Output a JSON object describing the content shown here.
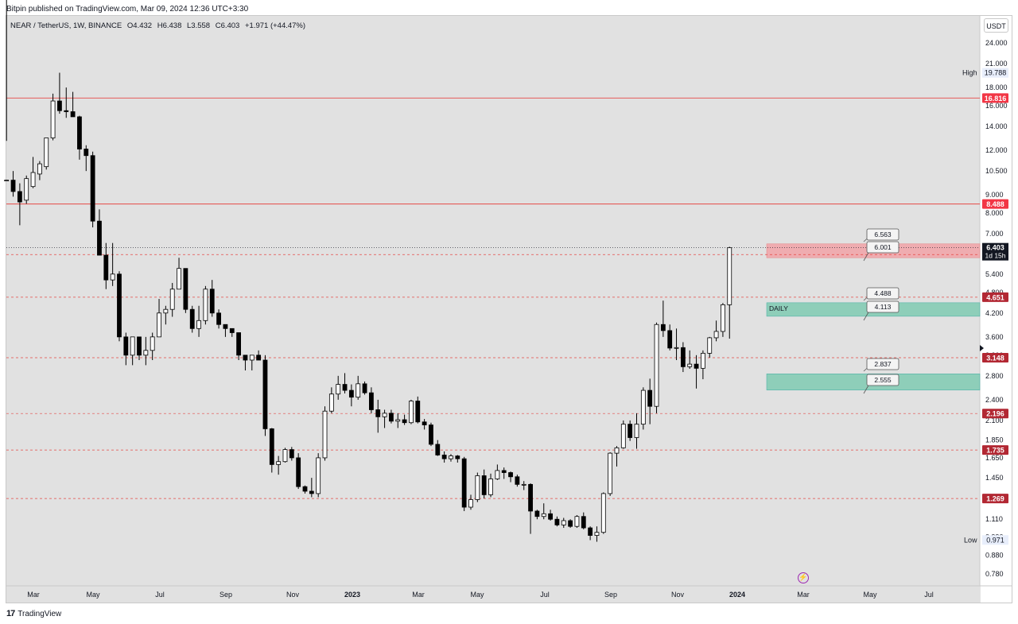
{
  "header": {
    "published_by": "Bitpin published on TradingView.com, Mar 09, 2024 12:36 UTC+3:30"
  },
  "legend": {
    "symbol": "NEAR / TetherUS, 1W, BINANCE",
    "open": "O4.432",
    "high": "H6.438",
    "low": "L3.558",
    "close": "C6.403",
    "change": "+1.971 (+44.47%)"
  },
  "price_axis": {
    "currency": "USDT",
    "tick_labels": [
      "24.000",
      "21.000",
      "18.000",
      "16.000",
      "14.000",
      "12.000",
      "10.500",
      "9.000",
      "8.000",
      "7.000",
      "6.000",
      "5.400",
      "4.800",
      "4.200",
      "3.600",
      "3.200",
      "2.800",
      "2.400",
      "2.100",
      "1.850",
      "1.650",
      "1.450",
      "1.250",
      "1.110",
      "0.990",
      "0.880",
      "0.780"
    ]
  },
  "time_axis": {
    "labels": [
      "Mar",
      "May",
      "Jul",
      "Sep",
      "Nov",
      "2023",
      "Mar",
      "May",
      "Jul",
      "Sep",
      "Nov",
      "2024",
      "Mar",
      "May",
      "Jul"
    ]
  },
  "footer": {
    "brand": "TradingView",
    "brand_mark": "17"
  },
  "colors": {
    "background": "#e1e1e1",
    "candle_up_body": "#ffffff",
    "candle_down_body": "#000000",
    "level_red": "#e53935",
    "zone_red": "#f2a3a8",
    "zone_green": "#80cbb3",
    "last_price_bg": "#131722"
  },
  "chart_data": {
    "type": "candlestick",
    "title": "NEAR / TetherUS, 1W, BINANCE",
    "yscale": "log",
    "ylim": [
      0.74,
      27
    ],
    "time_labels": [
      "Mar",
      "May",
      "Jul",
      "Sep",
      "Nov",
      "2023",
      "Mar",
      "May",
      "Jul",
      "Sep",
      "Nov",
      "2024",
      "Mar",
      "May",
      "Jul"
    ],
    "candles": [
      [
        null,
        null,
        12.75,
        9.9
      ],
      [
        9.9,
        10.5,
        8.9,
        9.2
      ],
      [
        9.2,
        9.7,
        7.4,
        8.6
      ],
      [
        8.7,
        10.2,
        8.5,
        10.0
      ],
      [
        9.5,
        11.5,
        9.4,
        10.4
      ],
      [
        10.3,
        11.2,
        9.9,
        11.0
      ],
      [
        10.8,
        13.0,
        10.6,
        13.0
      ],
      [
        13.0,
        17.3,
        12.8,
        16.5
      ],
      [
        16.5,
        19.8,
        15.2,
        15.5
      ],
      [
        15.5,
        18.0,
        14.8,
        15.4
      ],
      [
        15.4,
        17.5,
        14.9,
        14.9
      ],
      [
        14.9,
        15.0,
        11.3,
        12.1
      ],
      [
        12.1,
        12.4,
        10.5,
        11.6
      ],
      [
        11.6,
        11.9,
        7.3,
        7.6
      ],
      [
        7.6,
        8.2,
        6.1,
        6.1
      ],
      [
        6.1,
        6.6,
        4.9,
        5.2
      ],
      [
        5.2,
        6.6,
        5.0,
        5.4
      ],
      [
        5.4,
        5.5,
        3.5,
        3.6
      ],
      [
        3.6,
        3.7,
        3.0,
        3.2
      ],
      [
        3.2,
        3.6,
        3.0,
        3.6
      ],
      [
        3.6,
        3.6,
        3.1,
        3.2
      ],
      [
        3.2,
        3.6,
        3.0,
        3.3
      ],
      [
        3.3,
        3.7,
        3.1,
        3.6
      ],
      [
        3.6,
        4.6,
        3.6,
        4.2
      ],
      [
        4.2,
        4.4,
        3.9,
        4.3
      ],
      [
        4.3,
        5.1,
        4.1,
        4.9
      ],
      [
        4.9,
        6.0,
        4.9,
        5.6
      ],
      [
        5.6,
        5.6,
        4.2,
        4.3
      ],
      [
        4.3,
        4.4,
        3.7,
        3.8
      ],
      [
        3.8,
        4.4,
        3.6,
        4.0
      ],
      [
        4.0,
        5.0,
        3.9,
        4.9
      ],
      [
        4.9,
        5.2,
        4.1,
        4.2
      ],
      [
        4.2,
        4.3,
        3.8,
        3.9
      ],
      [
        3.9,
        3.9,
        3.6,
        3.8
      ],
      [
        3.8,
        3.8,
        3.6,
        3.7
      ],
      [
        3.7,
        3.7,
        3.1,
        3.2
      ],
      [
        3.2,
        3.2,
        2.9,
        3.1
      ],
      [
        3.1,
        3.2,
        2.9,
        3.2
      ],
      [
        3.2,
        3.3,
        3.1,
        3.1
      ],
      [
        3.1,
        3.2,
        1.9,
        1.99
      ],
      [
        1.99,
        2.0,
        1.5,
        1.58
      ],
      [
        1.58,
        1.67,
        1.48,
        1.61
      ],
      [
        1.61,
        1.76,
        1.6,
        1.74
      ],
      [
        1.74,
        1.77,
        1.62,
        1.65
      ],
      [
        1.65,
        1.7,
        1.35,
        1.37
      ],
      [
        1.37,
        1.38,
        1.31,
        1.33
      ],
      [
        1.33,
        1.45,
        1.28,
        1.31
      ],
      [
        1.31,
        1.7,
        1.28,
        1.65
      ],
      [
        1.65,
        2.3,
        1.62,
        2.23
      ],
      [
        2.23,
        2.6,
        2.2,
        2.49
      ],
      [
        2.49,
        2.8,
        2.4,
        2.65
      ],
      [
        2.65,
        2.85,
        2.5,
        2.55
      ],
      [
        2.55,
        2.65,
        2.3,
        2.44
      ],
      [
        2.44,
        2.8,
        2.4,
        2.66
      ],
      [
        2.66,
        2.7,
        2.48,
        2.51
      ],
      [
        2.51,
        2.6,
        2.2,
        2.25
      ],
      [
        2.25,
        2.4,
        1.94,
        2.15
      ],
      [
        2.15,
        2.25,
        2.0,
        2.2
      ],
      [
        2.2,
        2.25,
        2.06,
        2.09
      ],
      [
        2.09,
        2.2,
        2.0,
        2.11
      ],
      [
        2.11,
        2.18,
        2.04,
        2.07
      ],
      [
        2.07,
        2.4,
        2.05,
        2.38
      ],
      [
        2.38,
        2.45,
        2.06,
        2.08
      ],
      [
        2.08,
        2.12,
        1.98,
        2.04
      ],
      [
        2.04,
        2.07,
        1.78,
        1.8
      ],
      [
        1.8,
        1.85,
        1.67,
        1.68
      ],
      [
        1.68,
        1.72,
        1.6,
        1.64
      ],
      [
        1.64,
        1.69,
        1.61,
        1.67
      ],
      [
        1.67,
        1.68,
        1.6,
        1.64
      ],
      [
        1.64,
        1.66,
        1.17,
        1.2
      ],
      [
        1.2,
        1.3,
        1.18,
        1.26
      ],
      [
        1.26,
        1.5,
        1.24,
        1.47
      ],
      [
        1.47,
        1.53,
        1.27,
        1.3
      ],
      [
        1.3,
        1.49,
        1.28,
        1.44
      ],
      [
        1.44,
        1.58,
        1.43,
        1.52
      ],
      [
        1.52,
        1.55,
        1.44,
        1.5
      ],
      [
        1.5,
        1.51,
        1.41,
        1.46
      ],
      [
        1.46,
        1.48,
        1.37,
        1.39
      ],
      [
        1.39,
        1.42,
        1.34,
        1.39
      ],
      [
        1.39,
        1.4,
        1.01,
        1.17
      ],
      [
        1.17,
        1.18,
        1.11,
        1.13
      ],
      [
        1.13,
        1.23,
        1.11,
        1.15
      ],
      [
        1.15,
        1.18,
        1.1,
        1.11
      ],
      [
        1.11,
        1.13,
        1.06,
        1.07
      ],
      [
        1.07,
        1.12,
        1.05,
        1.1
      ],
      [
        1.1,
        1.11,
        1.05,
        1.06
      ],
      [
        1.06,
        1.14,
        1.05,
        1.13
      ],
      [
        1.13,
        1.16,
        1.04,
        1.05
      ],
      [
        1.05,
        1.06,
        0.97,
        1.0
      ],
      [
        1.0,
        1.06,
        0.96,
        1.02
      ],
      [
        1.02,
        1.32,
        1.01,
        1.31
      ],
      [
        1.31,
        1.71,
        1.29,
        1.7
      ],
      [
        1.7,
        1.78,
        1.56,
        1.76
      ],
      [
        1.76,
        2.1,
        1.75,
        2.05
      ],
      [
        2.05,
        2.1,
        1.84,
        1.88
      ],
      [
        1.88,
        2.2,
        1.75,
        2.05
      ],
      [
        2.05,
        2.6,
        1.98,
        2.55
      ],
      [
        2.55,
        2.75,
        2.05,
        2.3
      ],
      [
        2.3,
        3.95,
        2.2,
        3.9
      ],
      [
        3.9,
        4.55,
        3.6,
        3.75
      ],
      [
        3.75,
        3.9,
        3.3,
        3.35
      ],
      [
        3.35,
        3.8,
        3.1,
        3.36
      ],
      [
        3.36,
        3.48,
        2.87,
        2.97
      ],
      [
        2.97,
        3.3,
        2.93,
        3.02
      ],
      [
        3.02,
        3.2,
        2.58,
        2.94
      ],
      [
        2.94,
        3.3,
        2.74,
        3.24
      ],
      [
        3.24,
        3.6,
        3.15,
        3.58
      ],
      [
        3.58,
        4.0,
        3.5,
        3.73
      ],
      [
        3.73,
        4.48,
        3.6,
        4.43
      ],
      [
        4.43,
        6.44,
        3.56,
        6.4
      ]
    ],
    "last_price": {
      "value": "6.403",
      "countdown": "1d 15h"
    },
    "horizontal_levels": [
      {
        "value": 16.816,
        "label": "16.816",
        "style": "solid"
      },
      {
        "value": 8.488,
        "label": "8.488",
        "style": "solid"
      },
      {
        "value": 6.124,
        "label": "6.124",
        "style": "dashed"
      },
      {
        "value": 4.651,
        "label": "4.651",
        "style": "dashed"
      },
      {
        "value": 3.148,
        "label": "3.148",
        "style": "dashed"
      },
      {
        "value": 2.196,
        "label": "2.196",
        "style": "dashed"
      },
      {
        "value": 1.735,
        "label": "1.735",
        "style": "dashed"
      },
      {
        "value": 1.269,
        "label": "1.269",
        "style": "dashed"
      }
    ],
    "zones": [
      {
        "top": 6.563,
        "bottom": 6.001,
        "color": "red",
        "label": ""
      },
      {
        "top": 4.488,
        "bottom": 4.113,
        "color": "green",
        "label": "DAILY"
      },
      {
        "top": 2.837,
        "bottom": 2.555,
        "color": "green",
        "label": ""
      }
    ],
    "callouts": [
      "6.563",
      "6.001",
      "4.488",
      "4.113",
      "2.837",
      "2.555"
    ],
    "high": {
      "label": "High",
      "value": "19.788"
    },
    "low": {
      "label": "Low",
      "value": "0.971"
    }
  }
}
